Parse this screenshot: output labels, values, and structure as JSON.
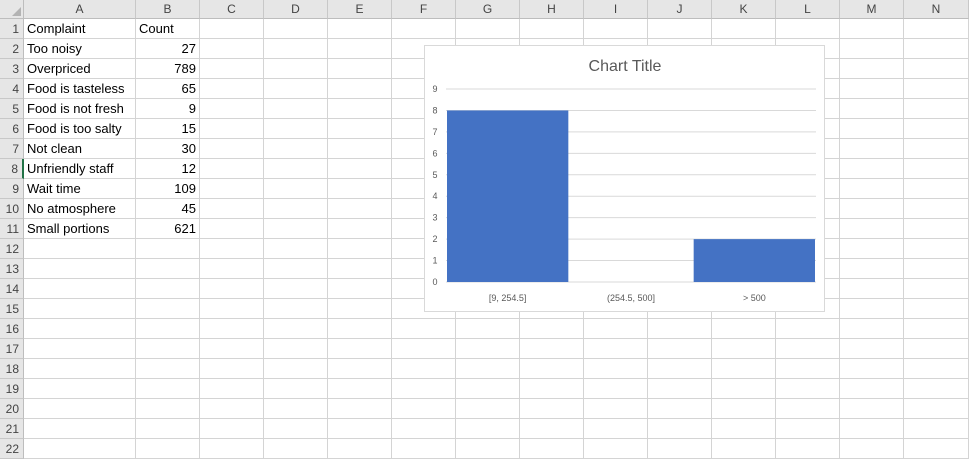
{
  "columns": [
    "A",
    "B",
    "C",
    "D",
    "E",
    "F",
    "G",
    "H",
    "I",
    "J",
    "K",
    "L",
    "M",
    "N"
  ],
  "rows": [
    "1",
    "2",
    "3",
    "4",
    "5",
    "6",
    "7",
    "8",
    "9",
    "10",
    "11",
    "12",
    "13",
    "14",
    "15",
    "16",
    "17",
    "18",
    "19",
    "20",
    "21",
    "22"
  ],
  "table": {
    "header": [
      "Complaint",
      "Count"
    ],
    "rows": [
      [
        "Too noisy",
        "27"
      ],
      [
        "Overpriced",
        "789"
      ],
      [
        "Food is tasteless",
        "65"
      ],
      [
        "Food is not fresh",
        "9"
      ],
      [
        "Food is too salty",
        "15"
      ],
      [
        "Not clean",
        "30"
      ],
      [
        "Unfriendly staff",
        "12"
      ],
      [
        "Wait time",
        "109"
      ],
      [
        "No atmosphere",
        "45"
      ],
      [
        "Small portions",
        "621"
      ]
    ]
  },
  "colors": {
    "bar": "#4472C4",
    "grid": "#d9d9d9",
    "header_bg": "#e6e6e6",
    "selection": "#217346"
  },
  "chart_data": {
    "type": "bar",
    "title": "Chart Title",
    "categories": [
      "[9, 254.5]",
      "(254.5, 500]",
      "> 500"
    ],
    "values": [
      8,
      0,
      2
    ],
    "ylim": [
      0,
      9
    ],
    "yticks": [
      "0",
      "1",
      "2",
      "3",
      "4",
      "5",
      "6",
      "7",
      "8",
      "9"
    ],
    "grid": true,
    "legend": "none"
  }
}
